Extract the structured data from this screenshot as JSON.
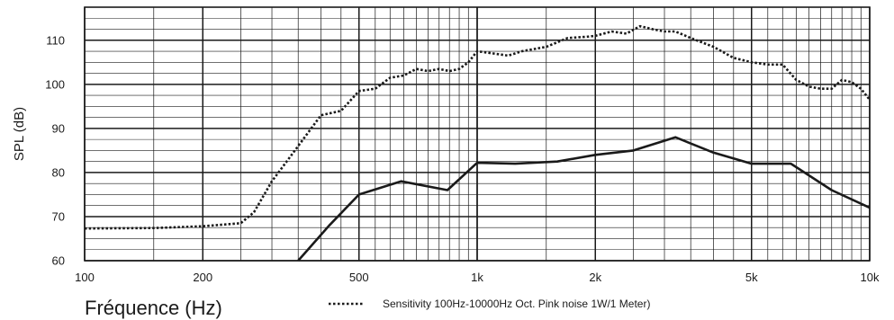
{
  "chart_data": {
    "type": "line",
    "xlabel": "Fréquence (Hz)",
    "ylabel": "SPL (dB)",
    "x_scale": "log",
    "xlim": [
      100,
      10000
    ],
    "ylim": [
      60,
      117.5
    ],
    "grid": true,
    "legend_position": "bottom",
    "x_ticks": [
      {
        "value": 100,
        "label": "100"
      },
      {
        "value": 200,
        "label": "200"
      },
      {
        "value": 500,
        "label": "500"
      },
      {
        "value": 1000,
        "label": "1k"
      },
      {
        "value": 2000,
        "label": "2k"
      },
      {
        "value": 5000,
        "label": "5k"
      },
      {
        "value": 10000,
        "label": "10k"
      }
    ],
    "y_ticks": [
      {
        "value": 60,
        "label": "60"
      },
      {
        "value": 70,
        "label": "70"
      },
      {
        "value": 80,
        "label": "80"
      },
      {
        "value": 90,
        "label": "90"
      },
      {
        "value": 100,
        "label": "100"
      },
      {
        "value": 110,
        "label": "110"
      }
    ],
    "series": [
      {
        "name": "Sensitivity 100Hz-10000Hz Oct. Pink noise 1W/1 Meter)",
        "style": "dotted",
        "color": "#1a1a1a",
        "x": [
          100,
          150,
          200,
          250,
          270,
          300,
          350,
          400,
          450,
          500,
          550,
          600,
          650,
          700,
          750,
          800,
          850,
          900,
          950,
          1000,
          1100,
          1200,
          1300,
          1500,
          1700,
          1900,
          2000,
          2200,
          2400,
          2600,
          2800,
          3000,
          3200,
          3500,
          4000,
          4500,
          5000,
          5500,
          6000,
          6500,
          7000,
          7500,
          8000,
          8500,
          9000,
          9500,
          10000
        ],
        "y": [
          67.3,
          67.4,
          67.8,
          68.5,
          71,
          78,
          86,
          93,
          94,
          98.5,
          99,
          101.5,
          102,
          103.5,
          103,
          103.5,
          103,
          103.5,
          105,
          107.5,
          107,
          106.5,
          107.5,
          108.5,
          110.5,
          110.8,
          111,
          112,
          111.5,
          113.2,
          112.5,
          112,
          112,
          110.5,
          108.5,
          106,
          105,
          104.5,
          104.5,
          101,
          99.5,
          99,
          99,
          101,
          100.5,
          99,
          96.5
        ]
      },
      {
        "name": "",
        "style": "solid",
        "color": "#1a1a1a",
        "x": [
          350,
          420,
          500,
          640,
          840,
          1000,
          1250,
          1600,
          2000,
          2500,
          3200,
          4000,
          5000,
          6300,
          8000,
          10000
        ],
        "y": [
          60,
          68,
          75,
          78,
          76,
          82.2,
          82,
          82.5,
          84,
          85,
          88,
          84.5,
          82,
          82,
          76,
          72
        ]
      }
    ]
  },
  "legend": {
    "entries": [
      {
        "label": "Sensitivity 100Hz-10000Hz Oct. Pink noise 1W/1 Meter)",
        "style": "dotted"
      }
    ]
  }
}
